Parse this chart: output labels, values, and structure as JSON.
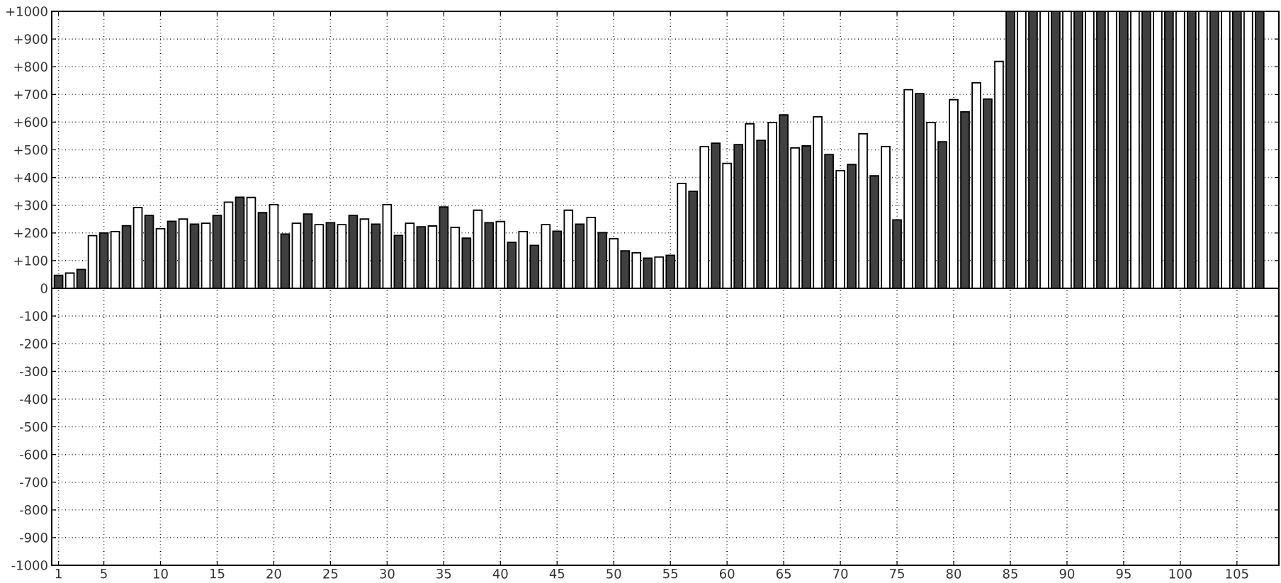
{
  "chart_data": {
    "type": "bar",
    "x": [
      1,
      2,
      3,
      4,
      5,
      6,
      7,
      8,
      9,
      10,
      11,
      12,
      13,
      14,
      15,
      16,
      17,
      18,
      19,
      20,
      21,
      22,
      23,
      24,
      25,
      26,
      27,
      28,
      29,
      30,
      31,
      32,
      33,
      34,
      35,
      36,
      37,
      38,
      39,
      40,
      41,
      42,
      43,
      44,
      45,
      46,
      47,
      48,
      49,
      50,
      51,
      52,
      53,
      54,
      55,
      56,
      57,
      58,
      59,
      60,
      61,
      62,
      63,
      64,
      65,
      66,
      67,
      68,
      69,
      70,
      71,
      72,
      73,
      74,
      75,
      76,
      77,
      78,
      79,
      80,
      81,
      82,
      83,
      84,
      85,
      86,
      87,
      88,
      89,
      90,
      91,
      92,
      93,
      94,
      95,
      96,
      97,
      98,
      99,
      100,
      101,
      102,
      103,
      104,
      105,
      106,
      107
    ],
    "values": [
      47,
      55,
      68,
      190,
      200,
      205,
      226,
      292,
      263,
      215,
      242,
      250,
      232,
      235,
      263,
      311,
      329,
      328,
      273,
      302,
      196,
      235,
      268,
      230,
      237,
      230,
      263,
      250,
      232,
      302,
      191,
      235,
      222,
      225,
      294,
      220,
      181,
      282,
      237,
      241,
      166,
      205,
      155,
      230,
      206,
      282,
      232,
      256,
      201,
      179,
      135,
      128,
      109,
      113,
      119,
      379,
      350,
      512,
      524,
      451,
      519,
      594,
      534,
      599,
      626,
      507,
      514,
      619,
      483,
      425,
      447,
      558,
      406,
      512,
      247,
      717,
      703,
      599,
      529,
      681,
      637,
      742,
      683,
      819,
      1000,
      1000,
      1000,
      1000,
      1000,
      1000,
      1000,
      1000,
      1000,
      1000,
      1000,
      1000,
      1000,
      1000,
      1000,
      1000,
      1000,
      1000,
      1000,
      1000,
      1000,
      1000,
      1000
    ],
    "colors": [
      "#404040",
      "#ffffff",
      "#404040",
      "#ffffff",
      "#404040",
      "#ffffff",
      "#404040",
      "#ffffff",
      "#404040",
      "#ffffff",
      "#404040",
      "#ffffff",
      "#404040",
      "#ffffff",
      "#404040",
      "#ffffff",
      "#404040",
      "#ffffff",
      "#404040",
      "#ffffff",
      "#404040",
      "#ffffff",
      "#404040",
      "#ffffff",
      "#404040",
      "#ffffff",
      "#404040",
      "#ffffff",
      "#404040",
      "#ffffff",
      "#404040",
      "#ffffff",
      "#404040",
      "#ffffff",
      "#404040",
      "#ffffff",
      "#404040",
      "#ffffff",
      "#404040",
      "#ffffff",
      "#404040",
      "#ffffff",
      "#404040",
      "#ffffff",
      "#404040",
      "#ffffff",
      "#404040",
      "#ffffff",
      "#404040",
      "#ffffff",
      "#404040",
      "#ffffff",
      "#404040",
      "#ffffff",
      "#404040",
      "#ffffff",
      "#404040",
      "#ffffff",
      "#404040",
      "#ffffff",
      "#404040",
      "#ffffff",
      "#404040",
      "#ffffff",
      "#404040",
      "#ffffff",
      "#404040",
      "#ffffff",
      "#404040",
      "#ffffff",
      "#404040",
      "#ffffff",
      "#404040",
      "#ffffff",
      "#404040",
      "#ffffff",
      "#404040",
      "#ffffff",
      "#404040",
      "#ffffff",
      "#404040",
      "#ffffff",
      "#404040",
      "#ffffff",
      "#404040",
      "#ffffff",
      "#404040",
      "#ffffff",
      "#404040",
      "#ffffff",
      "#404040",
      "#ffffff",
      "#404040",
      "#ffffff",
      "#404040",
      "#ffffff",
      "#404040",
      "#ffffff",
      "#404040",
      "#ffffff",
      "#404040",
      "#ffffff",
      "#404040",
      "#ffffff",
      "#404040",
      "#ffffff",
      "#404040"
    ],
    "xlim": [
      0.4,
      108.7
    ],
    "xticks": [
      1,
      5,
      10,
      15,
      20,
      25,
      30,
      35,
      40,
      45,
      50,
      55,
      60,
      65,
      70,
      75,
      80,
      85,
      90,
      95,
      100,
      105
    ],
    "ylim": [
      -1000,
      1000
    ],
    "yticks": [
      -1000,
      -900,
      -800,
      -700,
      -600,
      -500,
      -400,
      -300,
      -200,
      -100,
      0,
      {
        "value": 100,
        "label": "+100"
      },
      {
        "value": 200,
        "label": "+200"
      },
      {
        "value": 300,
        "label": "+300"
      },
      {
        "value": 400,
        "label": "+400"
      },
      {
        "value": 500,
        "label": "+500"
      },
      {
        "value": 600,
        "label": "+600"
      },
      {
        "value": 700,
        "label": "+700"
      },
      {
        "value": 800,
        "label": "+800"
      },
      {
        "value": 900,
        "label": "+900"
      },
      {
        "value": 1000,
        "label": "+1000"
      }
    ],
    "grid": true
  }
}
